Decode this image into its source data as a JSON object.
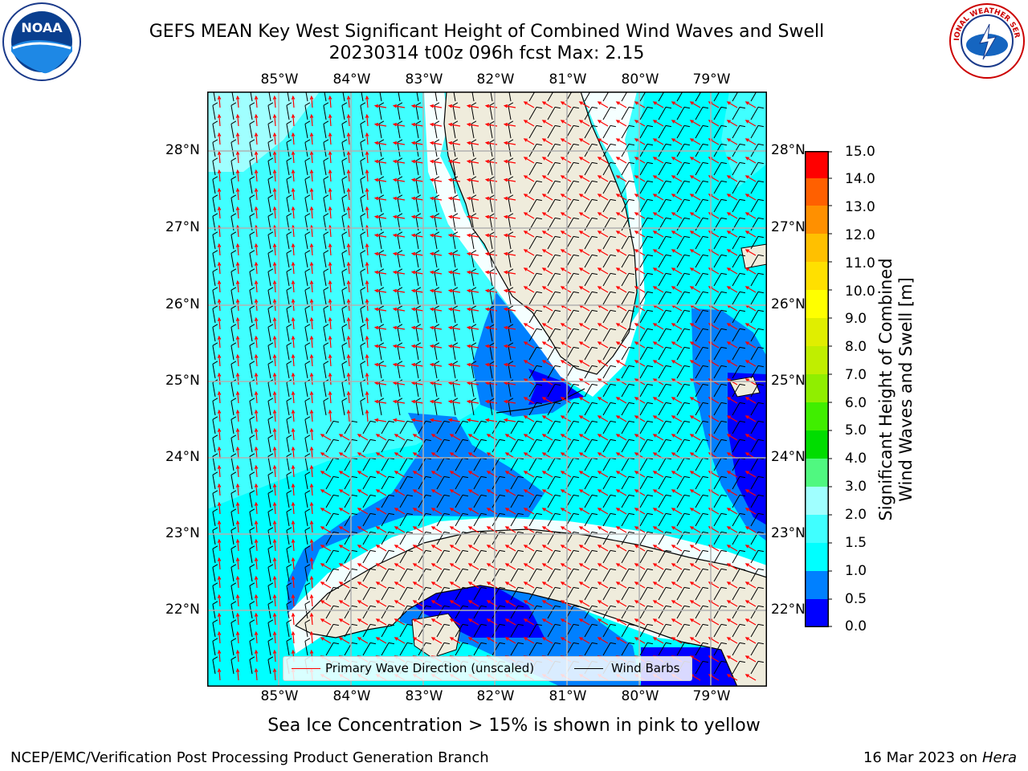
{
  "title": {
    "line1": "GEFS MEAN Key West Significant Height of Combined Wind Waves and Swell",
    "line2": "20230314 t00z 096h fcst   Max: 2.15"
  },
  "logos": {
    "left": {
      "name": "noaa-logo",
      "text": "NOAA"
    },
    "right": {
      "name": "nws-logo",
      "text": "NATIONAL WEATHER SERVICE"
    }
  },
  "map": {
    "lon_labels": [
      "85°W",
      "84°W",
      "83°W",
      "82°W",
      "81°W",
      "80°W",
      "79°W"
    ],
    "lat_labels": [
      "28°N",
      "27°N",
      "26°N",
      "25°N",
      "24°N",
      "23°N",
      "22°N"
    ],
    "land_color": "#efecdc",
    "arrow_color": "#ff0000",
    "barb_color": "#000000"
  },
  "colorbar": {
    "label": "Significant Height of Combined Wind Waves and Swell [m]",
    "label_line1": "Significant Height of Combined",
    "label_line2": "Wind Waves and Swell [m]",
    "ticks": [
      "0.0",
      "0.5",
      "1.0",
      "1.5",
      "2.0",
      "3.0",
      "4.0",
      "5.0",
      "6.0",
      "7.0",
      "8.0",
      "9.0",
      "10.0",
      "11.0",
      "12.0",
      "13.0",
      "14.0",
      "15.0"
    ],
    "colors": [
      "#0000ff",
      "#0080ff",
      "#00ffff",
      "#40ffff",
      "#a0ffff",
      "#50f880",
      "#00dd00",
      "#40ee00",
      "#90ee00",
      "#c0ee00",
      "#e0ee00",
      "#ffff00",
      "#ffe000",
      "#ffc000",
      "#ff9000",
      "#ff6000",
      "#ff3000",
      "#ff0000"
    ]
  },
  "legend": {
    "wave_label": "Primary Wave Direction (unscaled)",
    "barb_label": "Wind Barbs"
  },
  "footer": {
    "note": "Sea Ice Concentration > 15% is shown in pink to yellow",
    "credit": "NCEP/EMC/Verification Post Processing Product Generation Branch",
    "date": "16 Mar 2023 on",
    "host": "Hera"
  }
}
